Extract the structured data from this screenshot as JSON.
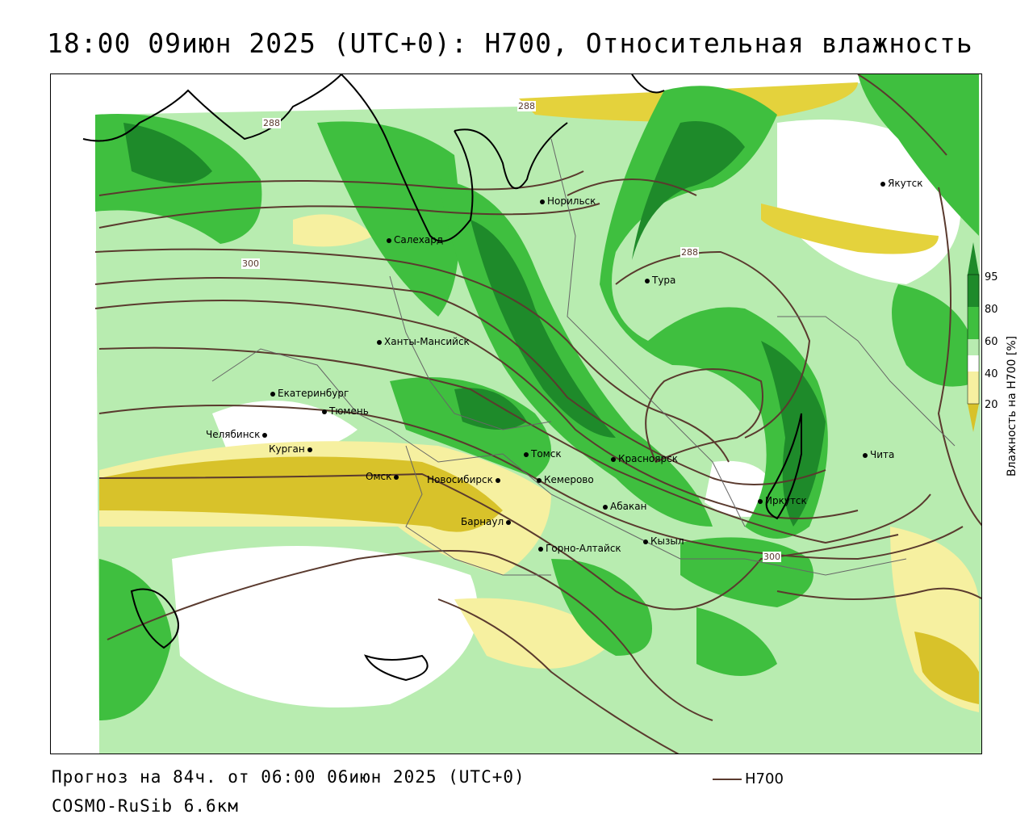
{
  "title": "18:00 09июн 2025 (UTC+0): H700, Относительная влажность",
  "forecast_line": "Прогноз на 84ч. от 06:00 06июн 2025 (UTC+0)",
  "model_line": "COSMO-RuSib 6.6км",
  "h_legend_label": "H700",
  "legend": {
    "label": "Влажность на H700 [%]",
    "levels": [
      "95",
      "80",
      "60",
      "40",
      "20"
    ],
    "colors": {
      "c95": "#1e8a2a",
      "c80": "#3fbf3f",
      "c60": "#b8ecb0",
      "c50": "#ffffff",
      "c40": "#f6f0a0",
      "c20": "#d8c22a"
    }
  },
  "contour_labels": [
    "288",
    "288",
    "288",
    "300",
    "300"
  ],
  "cities": [
    {
      "name": "Якутск"
    },
    {
      "name": "Норильск"
    },
    {
      "name": "Салехард"
    },
    {
      "name": "Тура"
    },
    {
      "name": "Ханты-Мансийск"
    },
    {
      "name": "Екатеринбург"
    },
    {
      "name": "Тюмень"
    },
    {
      "name": "Челябинск"
    },
    {
      "name": "Курган"
    },
    {
      "name": "Омск"
    },
    {
      "name": "Новосибирск"
    },
    {
      "name": "Томск"
    },
    {
      "name": "Кемерово"
    },
    {
      "name": "Красноярск"
    },
    {
      "name": "Абакан"
    },
    {
      "name": "Барнаул"
    },
    {
      "name": "Горно-Алтайск"
    },
    {
      "name": "Кызыл"
    },
    {
      "name": "Иркутск"
    },
    {
      "name": "Чита"
    }
  ]
}
